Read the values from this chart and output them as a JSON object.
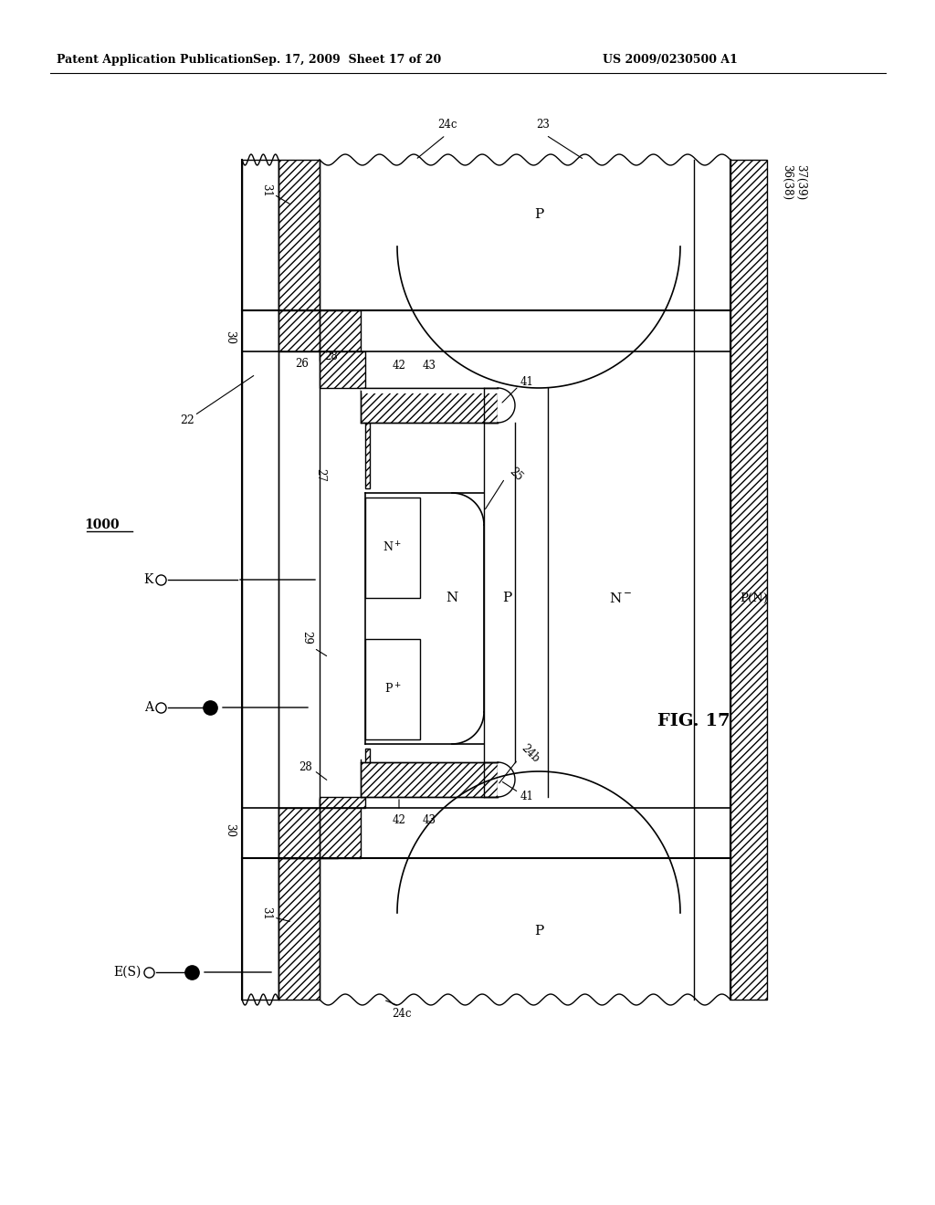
{
  "title_left": "Patent Application Publication",
  "title_mid": "Sep. 17, 2009  Sheet 17 of 20",
  "title_right": "US 2009/0230500 A1",
  "fig_label": "FIG. 17",
  "background": "#ffffff"
}
